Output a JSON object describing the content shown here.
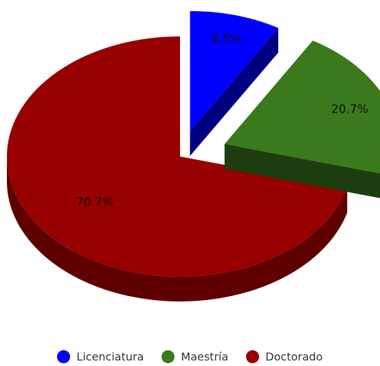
{
  "chart_data": {
    "type": "pie",
    "style": "3d-exploded",
    "categories": [
      "Licenciatura",
      "Maestría",
      "Doctorado"
    ],
    "values": [
      8.5,
      20.7,
      70.7
    ],
    "labels": [
      "8.5%",
      "20.7%",
      "70.7%"
    ],
    "colors": [
      "#0000ff",
      "#3a7a1c",
      "#990000"
    ],
    "legend_position": "bottom"
  }
}
